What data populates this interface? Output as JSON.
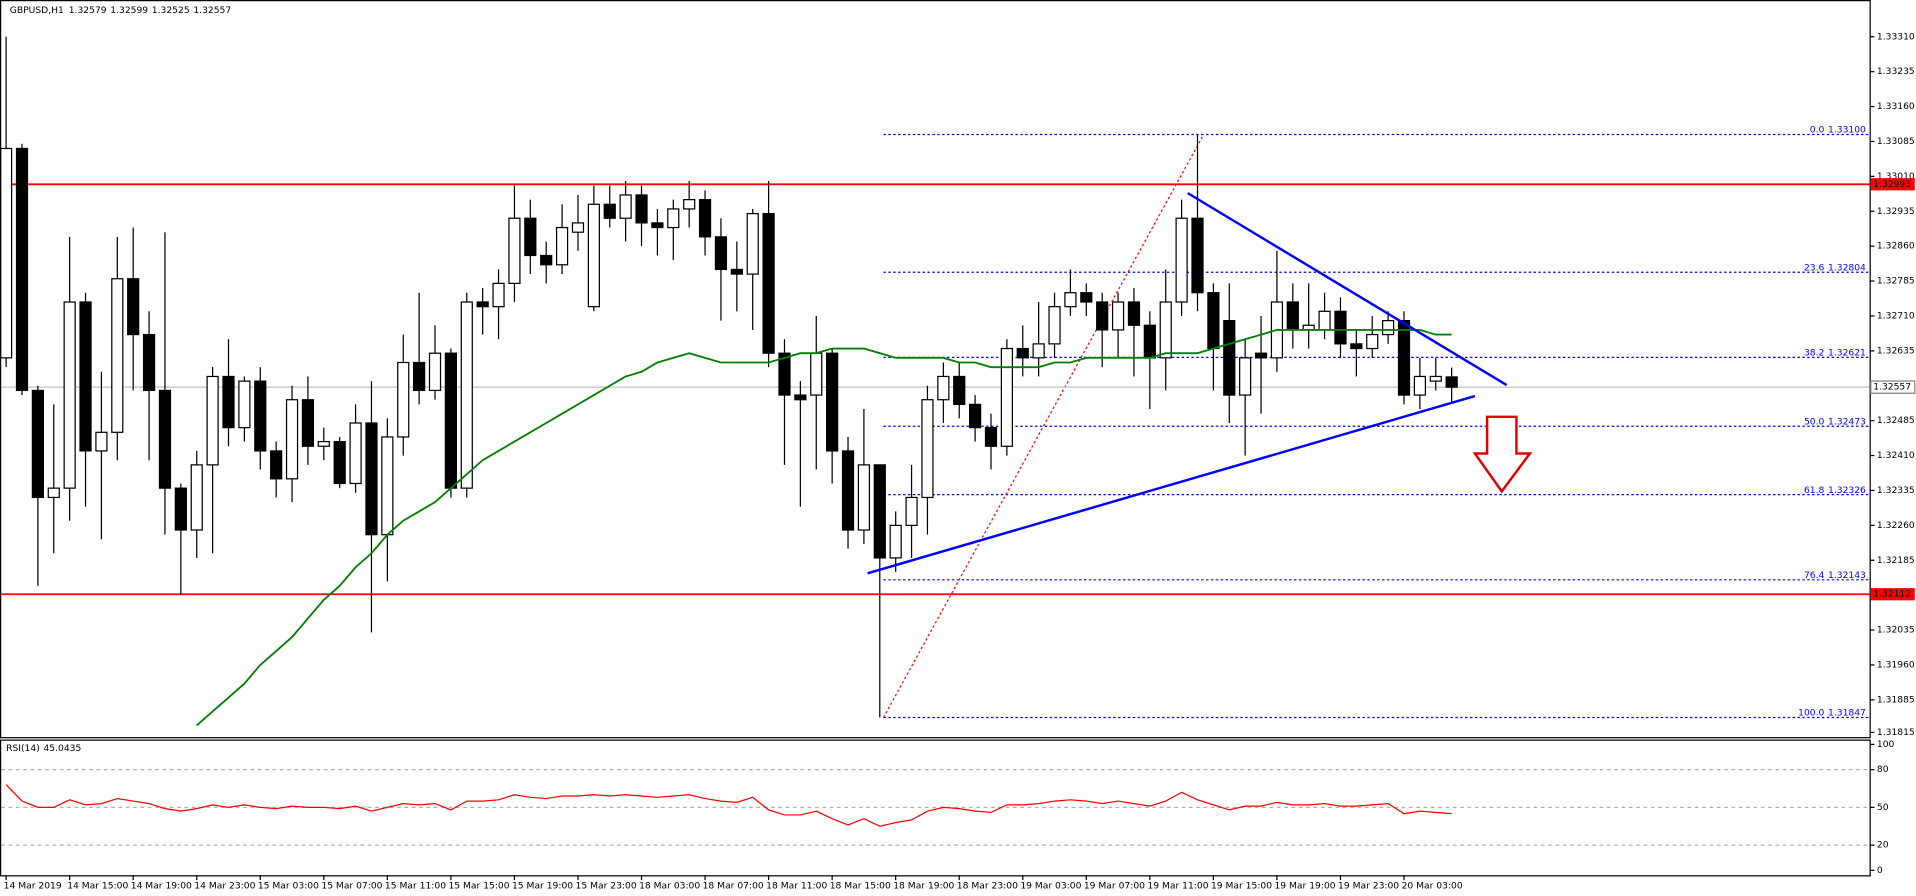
{
  "header": {
    "symbol": "GBPUSD,H1"
  },
  "chart_data": {
    "type": "candlestick",
    "categories": [
      "14 Mar 2019",
      null,
      null,
      null,
      "14 Mar 15:00",
      null,
      null,
      null,
      "14 Mar 19:00",
      null,
      null,
      null,
      "14 Mar 23:00",
      null,
      null,
      null,
      "15 Mar 03:00",
      null,
      null,
      null,
      "15 Mar 07:00",
      null,
      null,
      null,
      "15 Mar 11:00",
      null,
      null,
      null,
      "15 Mar 15:00",
      null,
      null,
      null,
      "15 Mar 19:00",
      null,
      null,
      null,
      "15 Mar 23:00",
      null,
      null,
      null,
      "18 Mar 03:00",
      null,
      null,
      null,
      "18 Mar 07:00",
      null,
      null,
      null,
      "18 Mar 11:00",
      null,
      null,
      null,
      "18 Mar 15:00",
      null,
      null,
      null,
      "18 Mar 19:00",
      null,
      null,
      null,
      "18 Mar 23:00",
      null,
      null,
      null,
      "19 Mar 03:00",
      null,
      null,
      null,
      "19 Mar 07:00",
      null,
      null,
      null,
      "19 Mar 11:00",
      null,
      null,
      null,
      "19 Mar 15:00",
      null,
      null,
      null,
      "19 Mar 19:00",
      null,
      null,
      null,
      "19 Mar 23:00",
      null,
      null,
      null,
      "20 Mar 03:00",
      null,
      null,
      null
    ],
    "candles": [
      [
        1.3262,
        1.3331,
        1.326,
        1.3307
      ],
      [
        1.3307,
        1.3308,
        1.3254,
        1.3255
      ],
      [
        1.3255,
        1.3256,
        1.3213,
        1.3232
      ],
      [
        1.3232,
        1.3252,
        1.322,
        1.3234
      ],
      [
        1.3234,
        1.3288,
        1.3227,
        1.3274
      ],
      [
        1.3274,
        1.3276,
        1.323,
        1.3242
      ],
      [
        1.3242,
        1.3259,
        1.3223,
        1.3246
      ],
      [
        1.3246,
        1.3288,
        1.324,
        1.3279
      ],
      [
        1.3279,
        1.329,
        1.3255,
        1.3267
      ],
      [
        1.3267,
        1.3272,
        1.324,
        1.3255
      ],
      [
        1.3255,
        1.3289,
        1.3224,
        1.3234
      ],
      [
        1.3234,
        1.3235,
        1.3211,
        1.3225
      ],
      [
        1.3225,
        1.3242,
        1.3219,
        1.3239
      ],
      [
        1.3239,
        1.326,
        1.322,
        1.3258
      ],
      [
        1.3258,
        1.3266,
        1.3243,
        1.3247
      ],
      [
        1.3247,
        1.3258,
        1.3244,
        1.3257
      ],
      [
        1.3257,
        1.326,
        1.3238,
        1.3242
      ],
      [
        1.3242,
        1.3244,
        1.3232,
        1.3236
      ],
      [
        1.3236,
        1.3256,
        1.3231,
        1.3253
      ],
      [
        1.3253,
        1.3258,
        1.3239,
        1.3243
      ],
      [
        1.3243,
        1.3247,
        1.324,
        1.3244
      ],
      [
        1.3244,
        1.3245,
        1.3234,
        1.3235
      ],
      [
        1.3235,
        1.3252,
        1.3233,
        1.3248
      ],
      [
        1.3248,
        1.3257,
        1.3203,
        1.3224
      ],
      [
        1.3224,
        1.3249,
        1.3214,
        1.3245
      ],
      [
        1.3245,
        1.3267,
        1.3241,
        1.3261
      ],
      [
        1.3261,
        1.3276,
        1.3252,
        1.3255
      ],
      [
        1.3255,
        1.3269,
        1.3253,
        1.3263
      ],
      [
        1.3263,
        1.3264,
        1.3232,
        1.3234
      ],
      [
        1.3234,
        1.3276,
        1.3232,
        1.3274
      ],
      [
        1.3274,
        1.3277,
        1.3267,
        1.3273
      ],
      [
        1.3273,
        1.3281,
        1.3266,
        1.3278
      ],
      [
        1.3278,
        1.3299,
        1.3274,
        1.3292
      ],
      [
        1.3292,
        1.3296,
        1.328,
        1.3284
      ],
      [
        1.3284,
        1.3287,
        1.3278,
        1.3282
      ],
      [
        1.3282,
        1.3295,
        1.328,
        1.329
      ],
      [
        1.3289,
        1.3297,
        1.3285,
        1.3291
      ],
      [
        1.3273,
        1.3299,
        1.3272,
        1.3295
      ],
      [
        1.3295,
        1.3299,
        1.329,
        1.3292
      ],
      [
        1.3292,
        1.33,
        1.3287,
        1.3297
      ],
      [
        1.3297,
        1.3299,
        1.3286,
        1.3291
      ],
      [
        1.3291,
        1.3294,
        1.3284,
        1.329
      ],
      [
        1.329,
        1.3296,
        1.3283,
        1.3294
      ],
      [
        1.3294,
        1.33,
        1.329,
        1.3296
      ],
      [
        1.3296,
        1.3298,
        1.3284,
        1.3288
      ],
      [
        1.3288,
        1.3292,
        1.327,
        1.3281
      ],
      [
        1.3281,
        1.3287,
        1.3272,
        1.328
      ],
      [
        1.328,
        1.3294,
        1.3268,
        1.3293
      ],
      [
        1.3293,
        1.33,
        1.326,
        1.3263
      ],
      [
        1.3263,
        1.3266,
        1.3239,
        1.3254
      ],
      [
        1.3254,
        1.3257,
        1.323,
        1.3253
      ],
      [
        1.3254,
        1.3271,
        1.3238,
        1.3263
      ],
      [
        1.3263,
        1.3264,
        1.3235,
        1.3242
      ],
      [
        1.3242,
        1.3245,
        1.3221,
        1.3225
      ],
      [
        1.3225,
        1.3251,
        1.3222,
        1.3239
      ],
      [
        1.3239,
        1.3239,
        1.31847,
        1.3219
      ],
      [
        1.3219,
        1.3229,
        1.3216,
        1.3226
      ],
      [
        1.3226,
        1.3239,
        1.3219,
        1.3232
      ],
      [
        1.3232,
        1.3256,
        1.3224,
        1.3253
      ],
      [
        1.3253,
        1.3261,
        1.3248,
        1.3258
      ],
      [
        1.3258,
        1.3261,
        1.3249,
        1.3252
      ],
      [
        1.3252,
        1.3254,
        1.3244,
        1.3247
      ],
      [
        1.3247,
        1.325,
        1.3238,
        1.3243
      ],
      [
        1.3243,
        1.3266,
        1.3241,
        1.3264
      ],
      [
        1.3264,
        1.3269,
        1.3258,
        1.3262
      ],
      [
        1.3262,
        1.3274,
        1.3258,
        1.3265
      ],
      [
        1.3265,
        1.3276,
        1.3262,
        1.3273
      ],
      [
        1.3273,
        1.3281,
        1.3271,
        1.3276
      ],
      [
        1.3276,
        1.3278,
        1.3271,
        1.3274
      ],
      [
        1.3274,
        1.3276,
        1.326,
        1.3268
      ],
      [
        1.3268,
        1.3276,
        1.3262,
        1.3274
      ],
      [
        1.3274,
        1.3277,
        1.3258,
        1.3269
      ],
      [
        1.3269,
        1.3272,
        1.3251,
        1.3262
      ],
      [
        1.3262,
        1.3281,
        1.3255,
        1.3274
      ],
      [
        1.3274,
        1.3296,
        1.3271,
        1.3292
      ],
      [
        1.3292,
        1.331,
        1.3272,
        1.3276
      ],
      [
        1.3276,
        1.3278,
        1.3255,
        1.3264
      ],
      [
        1.327,
        1.3278,
        1.3248,
        1.3254
      ],
      [
        1.3254,
        1.3266,
        1.3241,
        1.3262
      ],
      [
        1.3263,
        1.3271,
        1.325,
        1.3262
      ],
      [
        1.3262,
        1.3285,
        1.3259,
        1.3274
      ],
      [
        1.3274,
        1.3278,
        1.3264,
        1.3268
      ],
      [
        1.3268,
        1.3278,
        1.3264,
        1.3269
      ],
      [
        1.3268,
        1.3276,
        1.3266,
        1.3272
      ],
      [
        1.3272,
        1.3275,
        1.3262,
        1.3265
      ],
      [
        1.3265,
        1.3268,
        1.3258,
        1.3264
      ],
      [
        1.3264,
        1.3271,
        1.3262,
        1.3267
      ],
      [
        1.3267,
        1.3272,
        1.3265,
        1.327
      ],
      [
        1.327,
        1.3272,
        1.3252,
        1.3254
      ],
      [
        1.3254,
        1.3262,
        1.3251,
        1.3258
      ],
      [
        1.3257,
        1.3262,
        1.3255,
        1.3258
      ],
      [
        1.32579,
        1.32599,
        1.32525,
        1.32557
      ]
    ],
    "up_color": "#ffffff",
    "down_color": "#000000",
    "ylim": [
      1.31805,
      1.33389
    ],
    "yticks": [
      {
        "value": 1.3331,
        "label": "1.33310"
      },
      1.33235,
      {
        "value": 1.3316,
        "label": "1.33160"
      },
      1.33085,
      {
        "value": 1.3301,
        "label": "1.33010"
      },
      1.32935,
      {
        "value": 1.3286,
        "label": "1.32860"
      },
      1.32785,
      {
        "value": 1.3271,
        "label": "1.32710"
      },
      1.32635,
      {
        "value": 1.3256,
        "label": "1.32560"
      },
      1.32485,
      {
        "value": 1.3241,
        "label": "1.32410"
      },
      1.32335,
      {
        "value": 1.3226,
        "label": "1.32260"
      },
      1.32185,
      {
        "value": 1.3211,
        "label": "1.32110"
      },
      1.32035,
      {
        "value": 1.3196,
        "label": "1.31960"
      },
      1.31885,
      1.31815
    ],
    "ma": {
      "color": "#008000",
      "values": [
        null,
        null,
        null,
        null,
        null,
        null,
        null,
        null,
        null,
        null,
        null,
        null,
        1.3183,
        1.3186,
        1.3189,
        1.3192,
        1.3196,
        1.3199,
        1.3202,
        1.3206,
        1.321,
        1.3213,
        1.3217,
        1.322,
        1.3224,
        1.3227,
        1.3229,
        1.3231,
        1.3234,
        1.3237,
        1.324,
        1.3242,
        1.3244,
        1.3246,
        1.3248,
        1.325,
        1.3252,
        1.3254,
        1.3256,
        1.3258,
        1.3259,
        1.3261,
        1.3262,
        1.3263,
        1.3262,
        1.3261,
        1.3261,
        1.3261,
        1.3261,
        1.3262,
        1.3263,
        1.3263,
        1.3264,
        1.3264,
        1.3264,
        1.3263,
        1.3262,
        1.3262,
        1.3262,
        1.3262,
        1.3261,
        1.3261,
        1.326,
        1.326,
        1.326,
        1.326,
        1.3261,
        1.3261,
        1.3262,
        1.3262,
        1.3262,
        1.3262,
        1.3262,
        1.3263,
        1.3263,
        1.3263,
        1.3264,
        1.3265,
        1.3266,
        1.3267,
        1.3268,
        1.3268,
        1.3268,
        1.3268,
        1.3268,
        1.3268,
        1.3268,
        1.3268,
        1.3268,
        1.3268,
        1.3267,
        1.3267
      ]
    },
    "hlines": [
      {
        "value": 1.32993,
        "color": "#ff0000"
      },
      {
        "value": 1.32112,
        "color": "#ff0000"
      }
    ],
    "fib": {
      "color": "#0000ff",
      "line_color": "#ff0000",
      "levels": [
        {
          "level": "0.0",
          "price": 1.331,
          "price_label": "1.33100"
        },
        {
          "level": "23.6",
          "price": 1.32804
        },
        {
          "level": "38.2",
          "price": 1.32621
        },
        {
          "level": "50.0",
          "price": 1.32473
        },
        {
          "level": "61.8",
          "price": 1.32326
        },
        {
          "level": "76.4",
          "price": 1.32143
        },
        {
          "level": "100.0",
          "price": 1.31847
        }
      ]
    },
    "rsi": {
      "label": "RSI(14)",
      "color": "#ff0000",
      "ylim": [
        0,
        100
      ],
      "yticks": [
        100,
        80,
        50,
        20,
        0
      ],
      "values": [
        68,
        55,
        50,
        50,
        56,
        52,
        53,
        57,
        55,
        53,
        49,
        47,
        49,
        52,
        50,
        52,
        50,
        49,
        51,
        50,
        50,
        49,
        51,
        47,
        50,
        53,
        52,
        53,
        48,
        55,
        55,
        56,
        60,
        58,
        57,
        59,
        59,
        60,
        59,
        60,
        59,
        58,
        59,
        60,
        57,
        55,
        54,
        58,
        48,
        44,
        44,
        47,
        41,
        36,
        41,
        35,
        38,
        40,
        47,
        50,
        49,
        47,
        46,
        52,
        52,
        53,
        55,
        56,
        55,
        53,
        55,
        53,
        51,
        55,
        62,
        56,
        52,
        48,
        51,
        51,
        54,
        52,
        52,
        53,
        51,
        51,
        52,
        53,
        45,
        47,
        46,
        45.0435
      ]
    }
  }
}
